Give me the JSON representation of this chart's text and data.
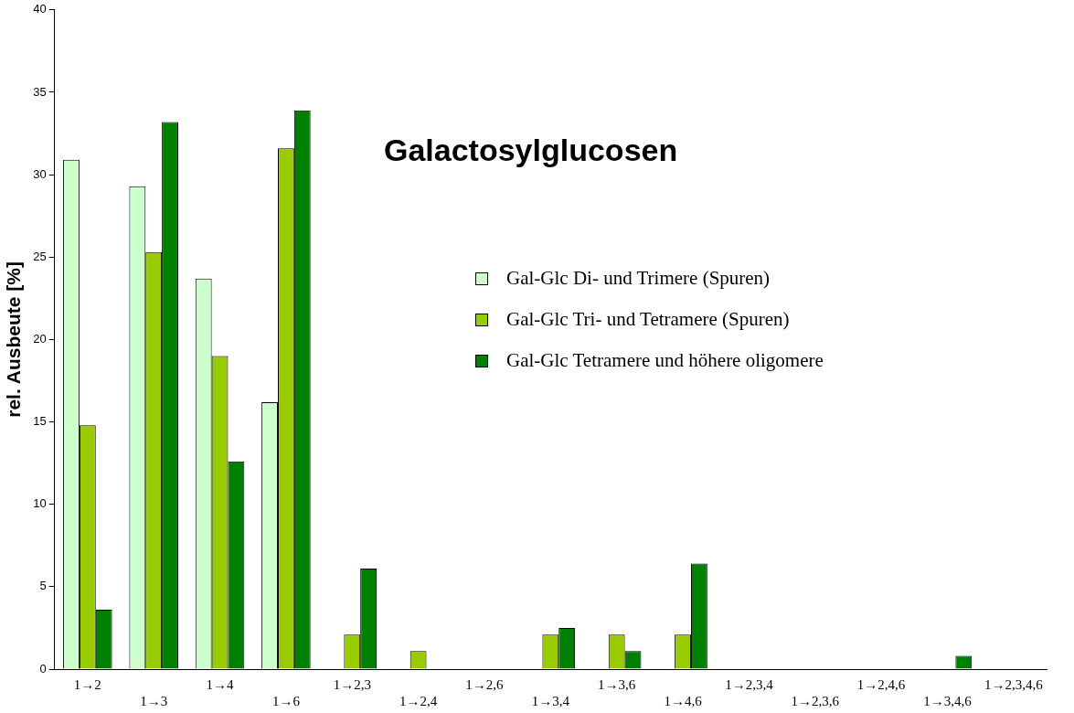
{
  "chart_data": {
    "type": "bar",
    "title": "Galactosylglucosen",
    "ylabel": "rel. Ausbeute [%]",
    "categories": [
      "1→2",
      "1→3",
      "1→4",
      "1→6",
      "1→2,3",
      "1→2,4",
      "1→2,6",
      "1→3,4",
      "1→3,6",
      "1→4,6",
      "1→2,3,4",
      "1→2,3,6",
      "1→2,4,6",
      "1→3,4,6",
      "1→2,3,4,6"
    ],
    "series": [
      {
        "name": "Gal-Glc Di- und Trimere (Spuren)",
        "color": "#ccffcc",
        "values": [
          30.9,
          29.3,
          23.7,
          16.2,
          0,
          0,
          0,
          0,
          0,
          0,
          0,
          0,
          0,
          0,
          0
        ]
      },
      {
        "name": "Gal-Glc Tri- und Tetramere (Spuren)",
        "color": "#99cc00",
        "values": [
          14.8,
          25.3,
          19,
          31.6,
          2.1,
          1.1,
          0,
          2.1,
          2.1,
          2.1,
          0,
          0,
          0,
          0,
          0
        ]
      },
      {
        "name": "Gal-Glc Tetramere und höhere oligomere",
        "color": "#008000",
        "values": [
          3.6,
          33.2,
          12.6,
          33.9,
          6.1,
          0,
          0,
          2.5,
          1.1,
          6.4,
          0,
          0,
          0,
          0.8,
          0
        ]
      }
    ],
    "ylim": [
      0,
      40
    ],
    "yticks": [
      0,
      5,
      10,
      15,
      20,
      25,
      30,
      35,
      40
    ],
    "grid": false,
    "legend": "center"
  }
}
